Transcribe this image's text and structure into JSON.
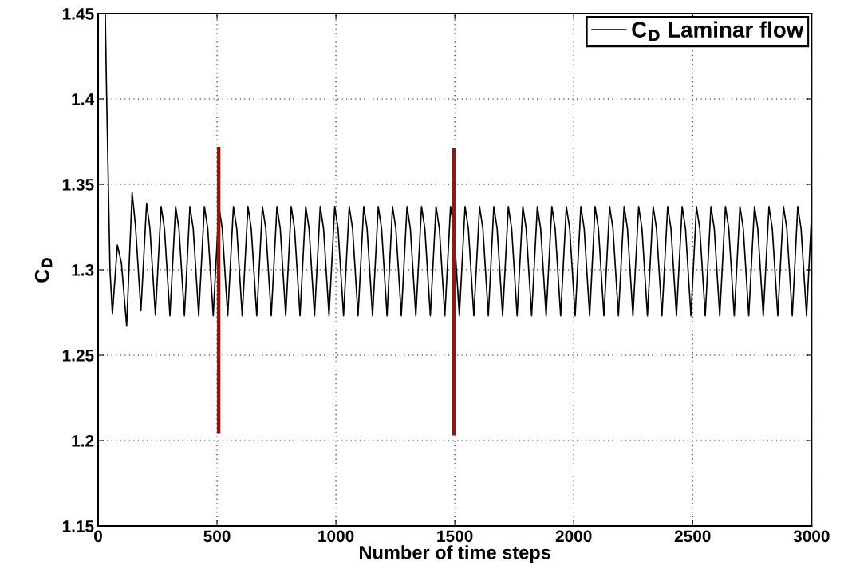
{
  "chart_data": {
    "type": "line",
    "xlabel": "Number of time steps",
    "ylabel": "C$_{D}$",
    "xlim": [
      0,
      3000
    ],
    "xticks": [
      0,
      500,
      1000,
      1500,
      2000,
      2500,
      3000
    ],
    "ylim": [
      1.15,
      1.45
    ],
    "yticks": [
      1.15,
      1.2,
      1.25,
      1.3,
      1.35,
      1.4,
      1.45
    ],
    "grid": true,
    "legend": "top right",
    "line_style": "solid",
    "marker": "none",
    "series": [
      {
        "name": "C$_{D}$ Laminar flow",
        "color": "#000000",
        "x": [
          30,
          36,
          50,
          60,
          81,
          98,
          120,
          143,
          157,
          180,
          204,
          218,
          241,
          265,
          279,
          302,
          326,
          340,
          363,
          386,
          400,
          423,
          447,
          461,
          484,
          508,
          522,
          545,
          569,
          583,
          606,
          630,
          644,
          667,
          691,
          705,
          728,
          752,
          766,
          789,
          812,
          826,
          849,
          873,
          887,
          910,
          934,
          948,
          971,
          995,
          1009,
          1032,
          1056,
          1070,
          1093,
          1117,
          1131,
          1154,
          1178,
          1192,
          1215,
          1238,
          1252,
          1275,
          1299,
          1313,
          1336,
          1360,
          1374,
          1397,
          1421,
          1435,
          1458,
          1482,
          1496,
          1519,
          1543,
          1557,
          1580,
          1604,
          1618,
          1641,
          1664,
          1678,
          1701,
          1725,
          1739,
          1762,
          1786,
          1800,
          1823,
          1847,
          1861,
          1884,
          1908,
          1922,
          1945,
          1969,
          1983,
          2006,
          2030,
          2044,
          2067,
          2090,
          2104,
          2127,
          2151,
          2165,
          2188,
          2212,
          2226,
          2249,
          2273,
          2287,
          2310,
          2334,
          2348,
          2371,
          2395,
          2409,
          2432,
          2456,
          2470,
          2493,
          2516,
          2530,
          2553,
          2577,
          2591,
          2614,
          2638,
          2652,
          2675,
          2699,
          2713,
          2736,
          2760,
          2774,
          2797,
          2821,
          2835,
          2858,
          2882,
          2896,
          2919,
          2942,
          2956,
          2979,
          3000
        ],
        "values": [
          1.45,
          1.4,
          1.3,
          1.274,
          1.3145,
          1.304,
          1.267,
          1.345,
          1.326,
          1.276,
          1.339,
          1.324,
          1.2735,
          1.337,
          1.324,
          1.273,
          1.337,
          1.324,
          1.273,
          1.337,
          1.324,
          1.273,
          1.337,
          1.324,
          1.273,
          1.337,
          1.324,
          1.273,
          1.337,
          1.324,
          1.273,
          1.337,
          1.324,
          1.273,
          1.337,
          1.324,
          1.273,
          1.337,
          1.324,
          1.273,
          1.337,
          1.324,
          1.273,
          1.337,
          1.324,
          1.273,
          1.337,
          1.324,
          1.273,
          1.337,
          1.324,
          1.273,
          1.337,
          1.324,
          1.273,
          1.337,
          1.324,
          1.273,
          1.337,
          1.324,
          1.273,
          1.337,
          1.324,
          1.273,
          1.337,
          1.324,
          1.273,
          1.337,
          1.324,
          1.273,
          1.337,
          1.324,
          1.273,
          1.337,
          1.324,
          1.273,
          1.337,
          1.324,
          1.273,
          1.337,
          1.324,
          1.273,
          1.337,
          1.324,
          1.273,
          1.337,
          1.324,
          1.273,
          1.337,
          1.324,
          1.273,
          1.337,
          1.324,
          1.273,
          1.337,
          1.324,
          1.273,
          1.337,
          1.324,
          1.273,
          1.337,
          1.324,
          1.273,
          1.337,
          1.324,
          1.273,
          1.337,
          1.324,
          1.273,
          1.337,
          1.324,
          1.273,
          1.337,
          1.324,
          1.273,
          1.337,
          1.324,
          1.273,
          1.337,
          1.324,
          1.273,
          1.337,
          1.324,
          1.273,
          1.337,
          1.324,
          1.273,
          1.337,
          1.324,
          1.273,
          1.337,
          1.324,
          1.273,
          1.337,
          1.324,
          1.273,
          1.337,
          1.324,
          1.273,
          1.337,
          1.324,
          1.273,
          1.337,
          1.324,
          1.273,
          1.337,
          1.324,
          1.273,
          1.332
        ]
      },
      {
        "color": "#8b1a10",
        "x": [
          507,
          507
        ],
        "values": [
          1.204,
          1.372
        ]
      },
      {
        "color": "#8b1a10",
        "x": [
          1496,
          1496
        ],
        "values": [
          1.203,
          1.371
        ]
      }
    ]
  }
}
